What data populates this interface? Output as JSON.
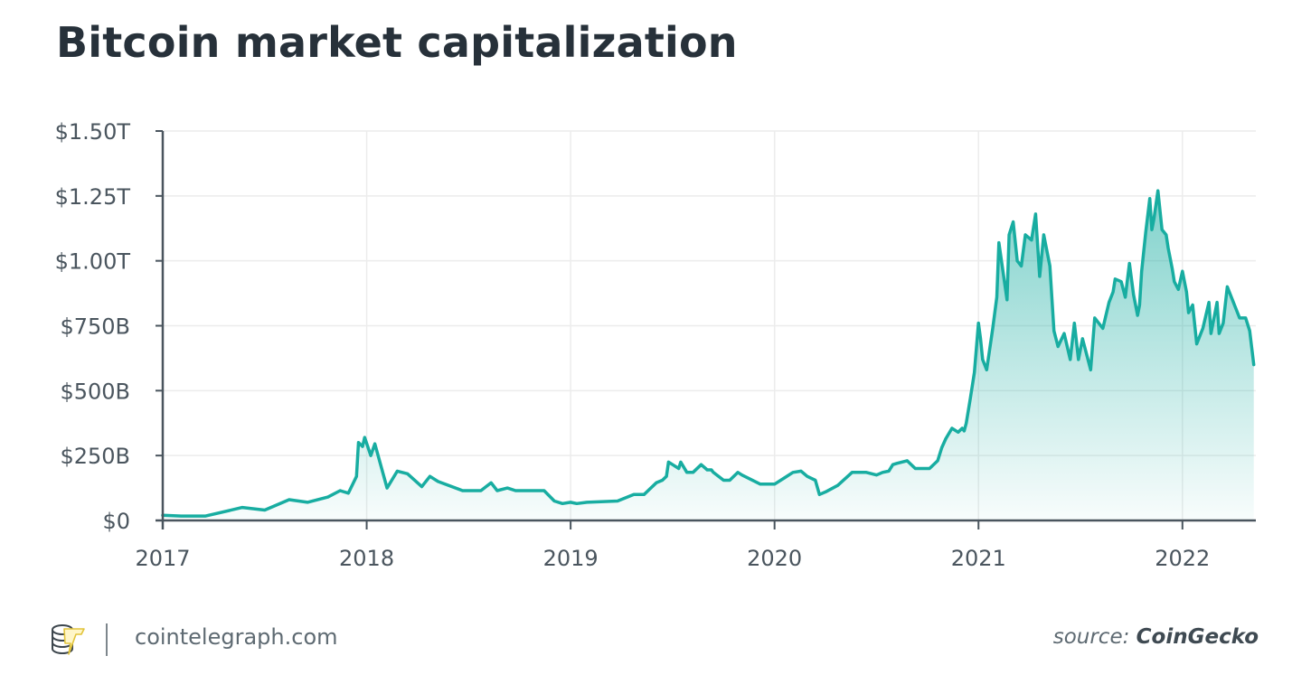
{
  "chart_data": {
    "type": "area",
    "title": "Bitcoin market capitalization",
    "xlabel": "",
    "ylabel": "",
    "xlim": [
      2017.0,
      2022.36
    ],
    "ylim": [
      0,
      1500
    ],
    "y_unit": "billion USD",
    "grid": true,
    "x_ticks": [
      {
        "value": 2017,
        "label": "2017"
      },
      {
        "value": 2018,
        "label": "2018"
      },
      {
        "value": 2019,
        "label": "2019"
      },
      {
        "value": 2020,
        "label": "2020"
      },
      {
        "value": 2021,
        "label": "2021"
      },
      {
        "value": 2022,
        "label": "2022"
      }
    ],
    "y_ticks": [
      {
        "value": 0,
        "label": "$0"
      },
      {
        "value": 250,
        "label": "$250B"
      },
      {
        "value": 500,
        "label": "$500B"
      },
      {
        "value": 750,
        "label": "$750B"
      },
      {
        "value": 1000,
        "label": "$1.00T"
      },
      {
        "value": 1250,
        "label": "$1.25T"
      },
      {
        "value": 1500,
        "label": "$1.50T"
      }
    ],
    "series": [
      {
        "name": "Bitcoin market capitalization",
        "color": "#18ada1",
        "x": [
          2017.0,
          2017.09,
          2017.21,
          2017.39,
          2017.5,
          2017.62,
          2017.71,
          2017.81,
          2017.87,
          2017.91,
          2017.95,
          2017.96,
          2017.98,
          2017.99,
          2018.02,
          2018.04,
          2018.1,
          2018.15,
          2018.2,
          2018.27,
          2018.31,
          2018.35,
          2018.47,
          2018.56,
          2018.61,
          2018.64,
          2018.69,
          2018.73,
          2018.78,
          2018.82,
          2018.87,
          2018.92,
          2018.96,
          2019.0,
          2019.03,
          2019.08,
          2019.23,
          2019.31,
          2019.33,
          2019.36,
          2019.38,
          2019.42,
          2019.45,
          2019.47,
          2019.48,
          2019.5,
          2019.53,
          2019.54,
          2019.57,
          2019.59,
          2019.6,
          2019.64,
          2019.67,
          2019.69,
          2019.7,
          2019.75,
          2019.78,
          2019.82,
          2019.84,
          2019.93,
          2019.98,
          2020.0,
          2020.05,
          2020.09,
          2020.13,
          2020.16,
          2020.2,
          2020.22,
          2020.25,
          2020.31,
          2020.38,
          2020.45,
          2020.5,
          2020.53,
          2020.56,
          2020.58,
          2020.6,
          2020.65,
          2020.69,
          2020.71,
          2020.76,
          2020.8,
          2020.82,
          2020.84,
          2020.87,
          2020.9,
          2020.92,
          2020.93,
          2020.94,
          2020.96,
          2020.98,
          2021.0,
          2021.01,
          2021.02,
          2021.04,
          2021.07,
          2021.09,
          2021.1,
          2021.12,
          2021.14,
          2021.15,
          2021.17,
          2021.19,
          2021.21,
          2021.23,
          2021.26,
          2021.28,
          2021.3,
          2021.32,
          2021.35,
          2021.37,
          2021.39,
          2021.42,
          2021.45,
          2021.47,
          2021.49,
          2021.51,
          2021.53,
          2021.55,
          2021.57,
          2021.61,
          2021.64,
          2021.66,
          2021.67,
          2021.7,
          2021.72,
          2021.74,
          2021.76,
          2021.78,
          2021.79,
          2021.8,
          2021.82,
          2021.84,
          2021.85,
          2021.86,
          2021.88,
          2021.9,
          2021.92,
          2021.93,
          2021.95,
          2021.96,
          2021.98,
          2022.0,
          2022.02,
          2022.03,
          2022.05,
          2022.07,
          2022.09,
          2022.1,
          2022.13,
          2022.14,
          2022.17,
          2022.18,
          2022.2,
          2022.22,
          2022.25,
          2022.28,
          2022.31,
          2022.33,
          2022.35
        ],
        "y": [
          20,
          17,
          17,
          50,
          40,
          80,
          70,
          90,
          115,
          105,
          170,
          300,
          285,
          320,
          250,
          295,
          125,
          190,
          180,
          130,
          170,
          150,
          115,
          115,
          145,
          115,
          125,
          115,
          115,
          115,
          115,
          75,
          65,
          70,
          65,
          70,
          75,
          100,
          100,
          100,
          115,
          145,
          155,
          170,
          225,
          215,
          200,
          225,
          185,
          185,
          185,
          215,
          195,
          195,
          185,
          155,
          155,
          185,
          175,
          140,
          140,
          140,
          165,
          185,
          190,
          170,
          155,
          100,
          110,
          135,
          185,
          185,
          175,
          185,
          190,
          215,
          220,
          230,
          200,
          200,
          200,
          230,
          280,
          315,
          355,
          340,
          355,
          345,
          375,
          470,
          570,
          760,
          700,
          620,
          580,
          740,
          860,
          1070,
          960,
          850,
          1100,
          1150,
          1000,
          980,
          1100,
          1080,
          1180,
          940,
          1100,
          980,
          730,
          670,
          720,
          620,
          760,
          620,
          700,
          640,
          580,
          780,
          740,
          840,
          880,
          930,
          920,
          860,
          990,
          870,
          790,
          830,
          960,
          1110,
          1240,
          1120,
          1160,
          1270,
          1120,
          1100,
          1050,
          970,
          920,
          890,
          960,
          880,
          800,
          830,
          680,
          720,
          740,
          840,
          720,
          840,
          720,
          760,
          900,
          840,
          780,
          780,
          730,
          600
        ]
      }
    ],
    "legend": "none"
  },
  "footer": {
    "site": "cointelegraph.com",
    "source_label": "source:",
    "source_name": "CoinGecko",
    "logo_name": "Cointelegraph"
  }
}
